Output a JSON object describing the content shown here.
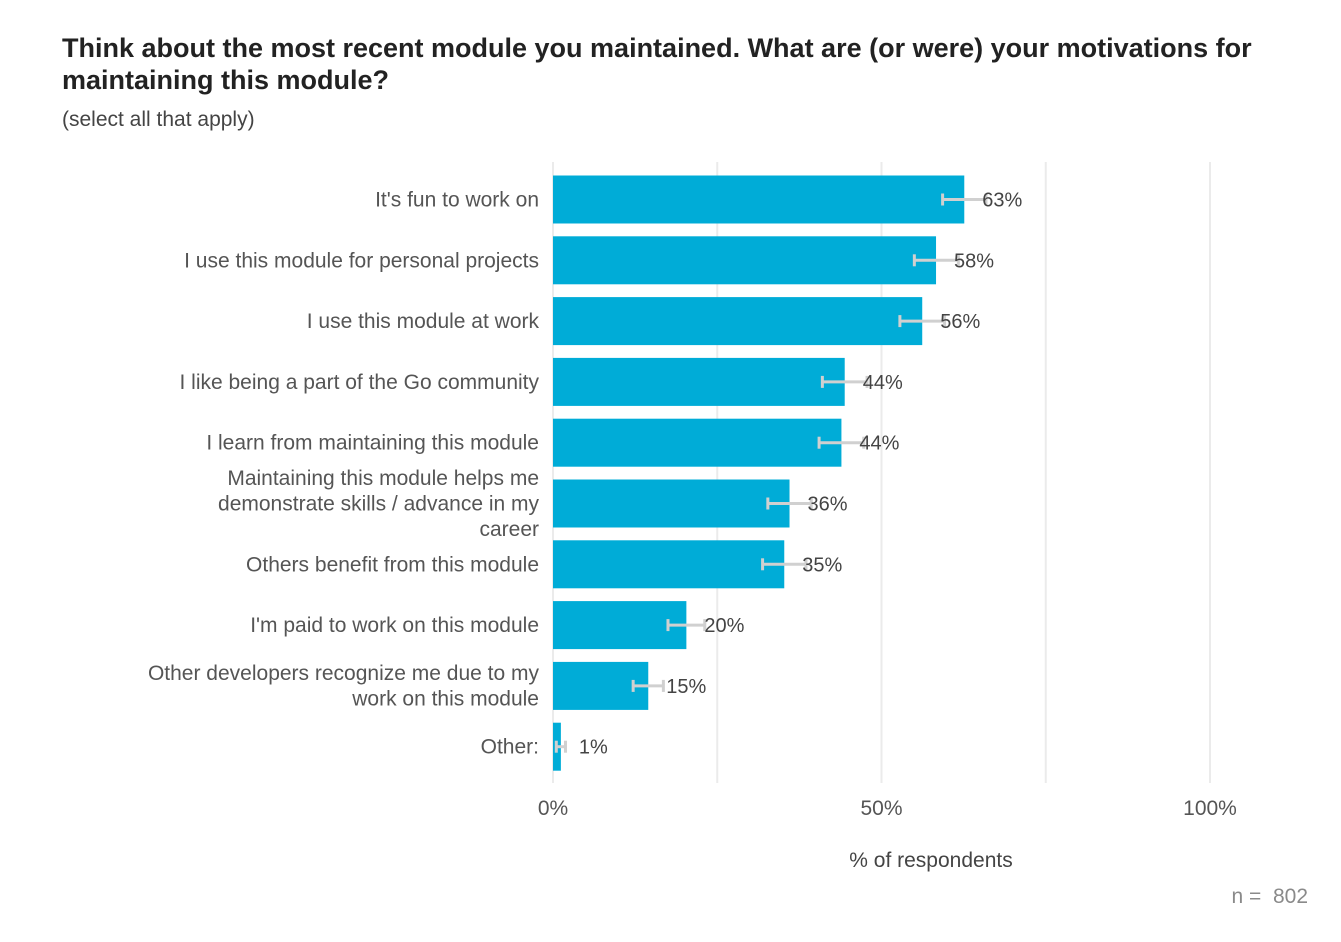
{
  "chart_data": {
    "type": "bar",
    "orientation": "horizontal",
    "title": "Think about the most recent module you maintained. What are (or were) your motivations for maintaining this module?",
    "subtitle": "(select all that apply)",
    "xlabel": "% of respondents",
    "ylabel": "",
    "xlim": [
      0,
      100
    ],
    "x_ticks": [
      {
        "value": 0,
        "label": "0%"
      },
      {
        "value": 50,
        "label": "50%"
      },
      {
        "value": 100,
        "label": "100%"
      }
    ],
    "grid": true,
    "bar_color": "#00acd7",
    "errorbar_color": "#d0d0d0",
    "categories": [
      [
        "It's fun to work on"
      ],
      [
        "I use this module for personal projects"
      ],
      [
        "I use this module at work"
      ],
      [
        "I like being a part of the Go community"
      ],
      [
        "I learn from maintaining this module"
      ],
      [
        "Maintaining this module helps me",
        "demonstrate skills / advance in my",
        "career"
      ],
      [
        "Others benefit from this module"
      ],
      [
        "I'm paid to work on this module"
      ],
      [
        "Other developers recognize me due to my",
        "work on this module"
      ],
      [
        "Other:"
      ]
    ],
    "values": [
      62.6,
      58.3,
      56.2,
      44.4,
      43.9,
      36.0,
      35.2,
      20.3,
      14.5,
      1.2
    ],
    "value_labels": [
      "63%",
      "58%",
      "56%",
      "44%",
      "44%",
      "36%",
      "35%",
      "20%",
      "15%",
      "1%"
    ],
    "error_low": [
      59.3,
      55.0,
      52.8,
      41.0,
      40.5,
      32.7,
      31.9,
      17.5,
      12.2,
      0.5
    ],
    "error_high": [
      65.9,
      61.7,
      59.6,
      47.8,
      47.3,
      39.3,
      38.5,
      23.1,
      16.8,
      1.9
    ],
    "sample_size": "n =  802"
  }
}
